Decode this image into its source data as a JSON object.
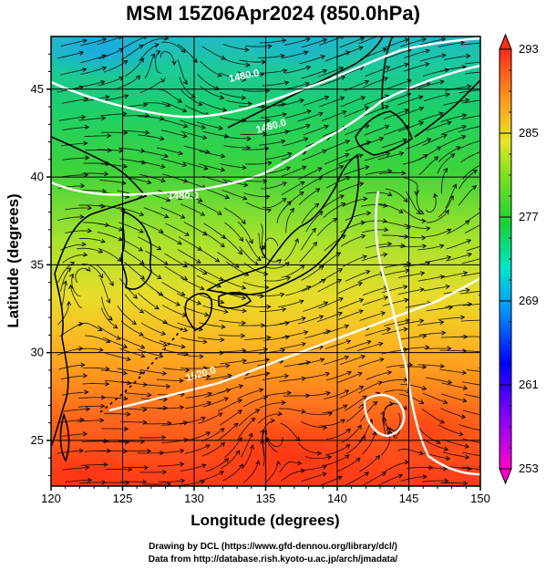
{
  "title": "MSM 15Z06Apr2024 (850.0hPa)",
  "xlabel": "Longitude (degrees)",
  "ylabel": "Latitude  (degrees)",
  "x_ticks": [
    "120",
    "125",
    "130",
    "135",
    "140",
    "145",
    "150"
  ],
  "y_ticks": [
    "25",
    "30",
    "35",
    "40",
    "45"
  ],
  "colorbar_ticks": [
    "293",
    "285",
    "277",
    "269",
    "261",
    "253"
  ],
  "contour_labels": [
    "1480.0",
    "1480.0",
    "1480.0",
    "1520.0"
  ],
  "credits": {
    "line1": "Drawing by DCL (https://www.gfd-dennou.org/library/dcl/)",
    "line2": "Data from http://database.rish.kyoto-u.ac.jp/arch/jmadata/"
  },
  "colors": {
    "warm": "#ff4a1c",
    "mid": "#b6e23a",
    "cool": "#16d28a",
    "cold": "#1aa3e8"
  }
}
